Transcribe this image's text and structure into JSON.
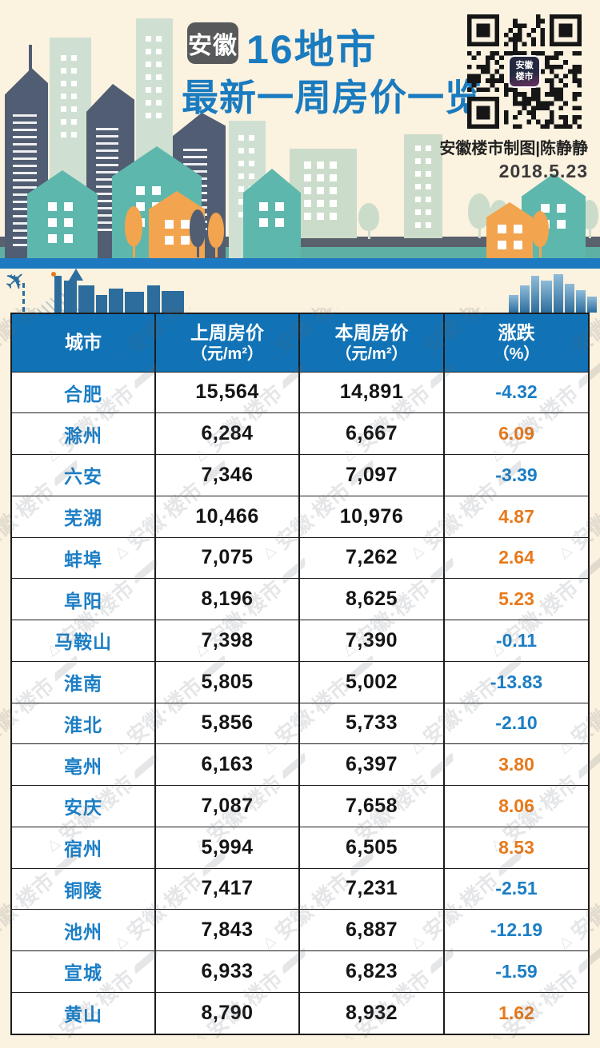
{
  "header": {
    "badge": "安徽",
    "title_line1": "16地市",
    "title_line2": "最新一周房价一览",
    "credit": "安徽楼市制图|陈静静",
    "date": "2018.5.23",
    "qr_logo_line1": "安徽",
    "qr_logo_line2": "楼市"
  },
  "watermark": {
    "text": "安徽·楼市"
  },
  "colors": {
    "background": "#fbf2e0",
    "title_blue": "#1a7bbf",
    "table_header_blue": "#1173b6",
    "positive_orange": "#e8791a",
    "negative_blue": "#1b7ec5",
    "band_teal": "#5fb0a4",
    "band_blue": "#1d79c0"
  },
  "table": {
    "columns": [
      {
        "label": "城市",
        "sub": ""
      },
      {
        "label": "上周房价",
        "sub": "（元/m²）"
      },
      {
        "label": "本周房价",
        "sub": "（元/m²）"
      },
      {
        "label": "涨跌",
        "sub": "（%）"
      }
    ],
    "rows": [
      {
        "city": "合肥",
        "last_week": "15,564",
        "this_week": "14,891",
        "change": "-4.32",
        "direction": "down"
      },
      {
        "city": "滁州",
        "last_week": "6,284",
        "this_week": "6,667",
        "change": "6.09",
        "direction": "up"
      },
      {
        "city": "六安",
        "last_week": "7,346",
        "this_week": "7,097",
        "change": "-3.39",
        "direction": "down"
      },
      {
        "city": "芜湖",
        "last_week": "10,466",
        "this_week": "10,976",
        "change": "4.87",
        "direction": "up"
      },
      {
        "city": "蚌埠",
        "last_week": "7,075",
        "this_week": "7,262",
        "change": "2.64",
        "direction": "up"
      },
      {
        "city": "阜阳",
        "last_week": "8,196",
        "this_week": "8,625",
        "change": "5.23",
        "direction": "up"
      },
      {
        "city": "马鞍山",
        "last_week": "7,398",
        "this_week": "7,390",
        "change": "-0.11",
        "direction": "down"
      },
      {
        "city": "淮南",
        "last_week": "5,805",
        "this_week": "5,002",
        "change": "-13.83",
        "direction": "down"
      },
      {
        "city": "淮北",
        "last_week": "5,856",
        "this_week": "5,733",
        "change": "-2.10",
        "direction": "down"
      },
      {
        "city": "亳州",
        "last_week": "6,163",
        "this_week": "6,397",
        "change": "3.80",
        "direction": "up"
      },
      {
        "city": "安庆",
        "last_week": "7,087",
        "this_week": "7,658",
        "change": "8.06",
        "direction": "up"
      },
      {
        "city": "宿州",
        "last_week": "5,994",
        "this_week": "6,505",
        "change": "8.53",
        "direction": "up"
      },
      {
        "city": "铜陵",
        "last_week": "7,417",
        "this_week": "7,231",
        "change": "-2.51",
        "direction": "down"
      },
      {
        "city": "池州",
        "last_week": "7,843",
        "this_week": "6,887",
        "change": "-12.19",
        "direction": "down"
      },
      {
        "city": "宣城",
        "last_week": "6,933",
        "this_week": "6,823",
        "change": "-1.59",
        "direction": "down"
      },
      {
        "city": "黄山",
        "last_week": "8,790",
        "this_week": "8,932",
        "change": "1.62",
        "direction": "up"
      }
    ]
  },
  "chart_data": {
    "type": "table",
    "title": "安徽16地市 最新一周房价一览",
    "date": "2018.5.23",
    "columns": [
      "城市",
      "上周房价（元/㎡）",
      "本周房价（元/㎡）",
      "涨跌（%）"
    ],
    "rows": [
      [
        "合肥",
        15564,
        14891,
        -4.32
      ],
      [
        "滁州",
        6284,
        6667,
        6.09
      ],
      [
        "六安",
        7346,
        7097,
        -3.39
      ],
      [
        "芜湖",
        10466,
        10976,
        4.87
      ],
      [
        "蚌埠",
        7075,
        7262,
        2.64
      ],
      [
        "阜阳",
        8196,
        8625,
        5.23
      ],
      [
        "马鞍山",
        7398,
        7390,
        -0.11
      ],
      [
        "淮南",
        5805,
        5002,
        -13.83
      ],
      [
        "淮北",
        5856,
        5733,
        -2.1
      ],
      [
        "亳州",
        6163,
        6397,
        3.8
      ],
      [
        "安庆",
        7087,
        7658,
        8.06
      ],
      [
        "宿州",
        5994,
        6505,
        8.53
      ],
      [
        "铜陵",
        7417,
        7231,
        -2.51
      ],
      [
        "池州",
        7843,
        6887,
        -12.19
      ],
      [
        "宣城",
        6933,
        6823,
        -1.59
      ],
      [
        "黄山",
        8790,
        8932,
        1.62
      ]
    ]
  }
}
